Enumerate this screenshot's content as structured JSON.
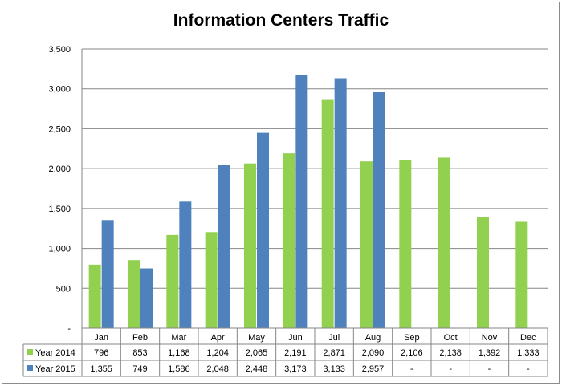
{
  "chart_data": {
    "type": "bar",
    "title": "Information Centers Traffic",
    "categories": [
      "Jan",
      "Feb",
      "Mar",
      "Apr",
      "May",
      "Jun",
      "Jul",
      "Aug",
      "Sep",
      "Oct",
      "Nov",
      "Dec"
    ],
    "series": [
      {
        "name": "Year 2014",
        "color": "#92d050",
        "values": [
          796,
          853,
          1168,
          1204,
          2065,
          2191,
          2871,
          2090,
          2106,
          2138,
          1392,
          1333
        ],
        "labels": [
          "796",
          "853",
          "1,168",
          "1,204",
          "2,065",
          "2,191",
          "2,871",
          "2,090",
          "2,106",
          "2,138",
          "1,392",
          "1,333"
        ]
      },
      {
        "name": "Year 2015",
        "color": "#4f81bd",
        "values": [
          1355,
          749,
          1586,
          2048,
          2448,
          3173,
          3133,
          2957,
          null,
          null,
          null,
          null
        ],
        "labels": [
          "1,355",
          "749",
          "1,586",
          "2,048",
          "2,448",
          "3,173",
          "3,133",
          "2,957",
          "-",
          "-",
          "-",
          "-"
        ]
      }
    ],
    "ylim": [
      0,
      3500
    ],
    "yticks": [
      0,
      500,
      1000,
      1500,
      2000,
      2500,
      3000,
      3500
    ],
    "ytick_labels": [
      "-",
      "500",
      "1,000",
      "1,500",
      "2,000",
      "2,500",
      "3,000",
      "3,500"
    ],
    "grid": true,
    "legend": "data-table"
  }
}
